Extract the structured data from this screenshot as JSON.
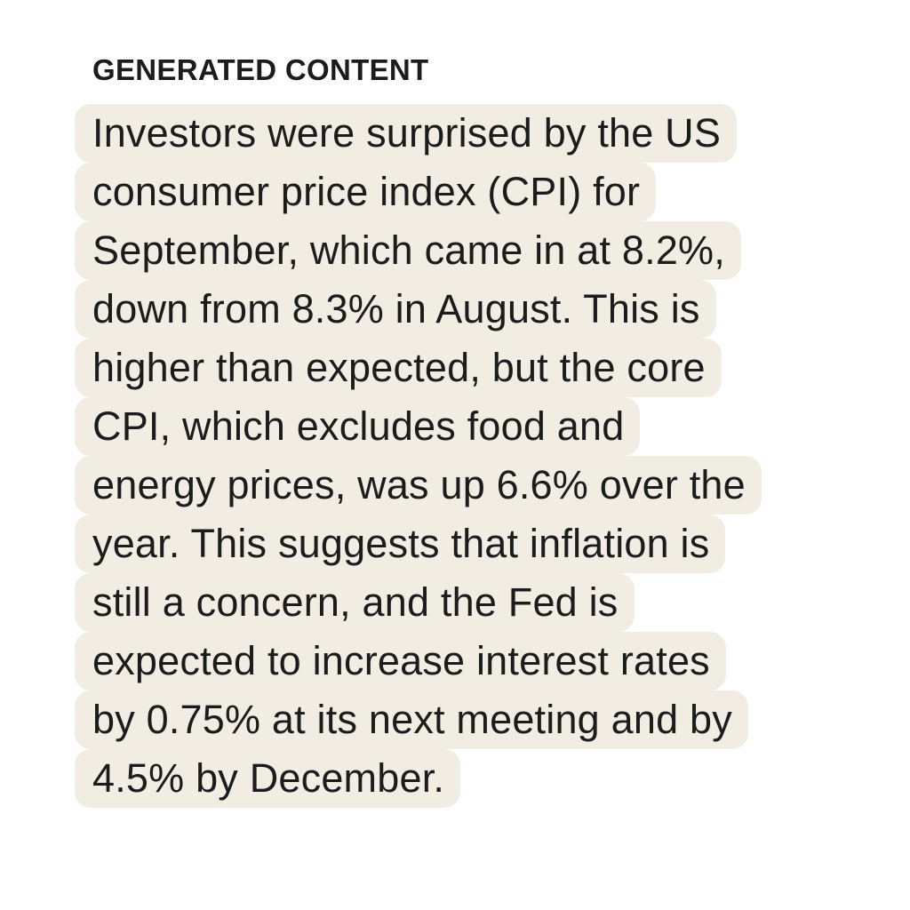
{
  "header": {
    "title": "GENERATED CONTENT"
  },
  "body": {
    "lines": [
      "Investors were surprised by the US",
      "consumer price index (CPI) for",
      "September, which came in at 8.2%,",
      "down from 8.3% in August. This is",
      "higher than expected, but the core",
      "CPI, which excludes food and",
      "energy prices, was up 6.6% over the",
      "year. This suggests that inflation is",
      "still a concern, and the Fed is",
      "expected to increase interest rates",
      "by 0.75% at its next meeting and by",
      "4.5% by December."
    ]
  }
}
